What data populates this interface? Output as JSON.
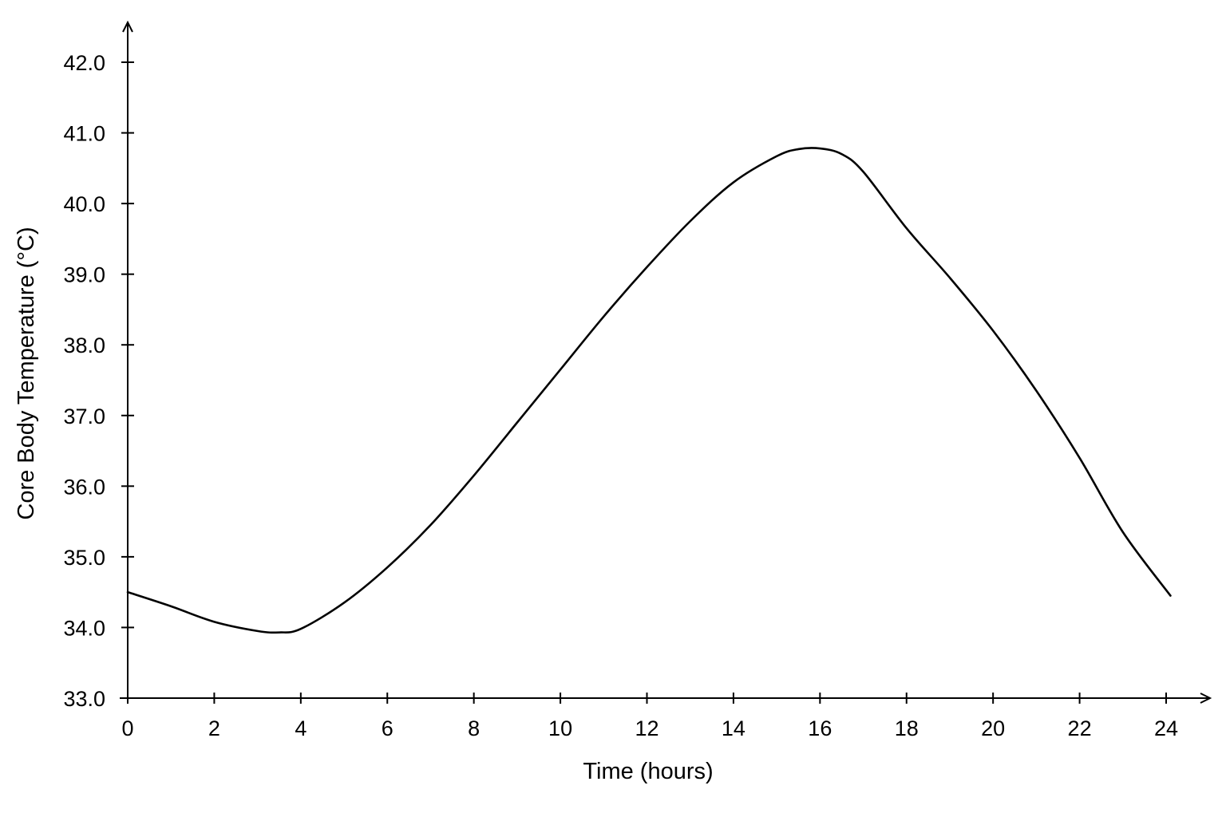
{
  "chart_data": {
    "type": "line",
    "title": "",
    "xlabel": "Time (hours)",
    "ylabel": "Core Body Temperature (°C)",
    "xlim": [
      0,
      24
    ],
    "ylim": [
      33.0,
      42.0
    ],
    "x_ticks": [
      "0",
      "2",
      "4",
      "6",
      "8",
      "10",
      "12",
      "14",
      "16",
      "18",
      "20",
      "22",
      "24"
    ],
    "y_ticks": [
      "33.0",
      "34.0",
      "35.0",
      "36.0",
      "37.0",
      "38.0",
      "39.0",
      "40.0",
      "41.0",
      "42.0"
    ],
    "grid": false,
    "legend": "none",
    "line_color": "#000000",
    "series": [
      {
        "x": [
          0,
          1,
          2,
          3,
          3.5,
          4,
          5,
          6,
          7,
          8,
          9,
          10,
          11,
          12,
          13,
          14,
          15,
          15.5,
          16,
          16.5,
          17,
          18,
          19,
          20,
          21,
          22,
          23,
          24.1
        ],
        "y": [
          34.5,
          34.3,
          34.08,
          33.95,
          33.93,
          33.98,
          34.35,
          34.85,
          35.45,
          36.15,
          36.9,
          37.65,
          38.4,
          39.1,
          39.75,
          40.3,
          40.67,
          40.77,
          40.78,
          40.7,
          40.45,
          39.65,
          38.95,
          38.2,
          37.35,
          36.4,
          35.35,
          34.45
        ]
      }
    ]
  }
}
